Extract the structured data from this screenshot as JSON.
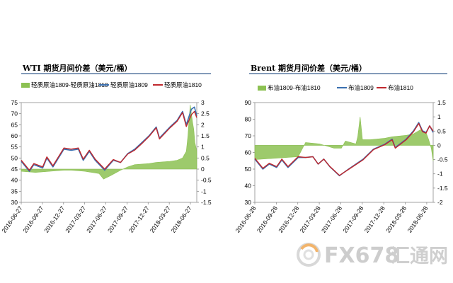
{
  "chart_data": [
    {
      "type": "line",
      "title": "WTI 期货月间价差（美元/桶）",
      "x_tick_labels": [
        "2016-06-27",
        "2016-09-27",
        "2016-12-27",
        "2017-03-27",
        "2017-06-27",
        "2017-09-27",
        "2017-12-27",
        "2018-03-27",
        "2018-06-27"
      ],
      "x_range": [
        "2016-06-27",
        "2018-07-20"
      ],
      "ylim_left": [
        30,
        75
      ],
      "yticks_left": [
        30,
        35,
        40,
        45,
        50,
        55,
        60,
        65,
        70,
        75
      ],
      "ylim_right": [
        -1.5,
        3
      ],
      "yticks_right": [
        -1.5,
        -1,
        -0.5,
        0,
        0.5,
        1,
        1.5,
        2,
        2.5,
        3
      ],
      "legend_position": "top",
      "grid": false,
      "series": [
        {
          "name": "轻质原油1809-轻质原油1810",
          "kind": "area",
          "axis": "right",
          "color": "#8cc152",
          "points": [
            [
              "2016-06-27",
              -0.1
            ],
            [
              "2016-08-27",
              -0.15
            ],
            [
              "2016-10-27",
              -0.1
            ],
            [
              "2016-12-27",
              -0.05
            ],
            [
              "2017-01-27",
              -0.05
            ],
            [
              "2017-03-27",
              -0.1
            ],
            [
              "2017-05-27",
              -0.2
            ],
            [
              "2017-06-15",
              -0.45
            ],
            [
              "2017-07-15",
              -0.3
            ],
            [
              "2017-08-27",
              -0.05
            ],
            [
              "2017-09-27",
              0.1
            ],
            [
              "2017-10-27",
              0.2
            ],
            [
              "2017-12-27",
              0.25
            ],
            [
              "2018-01-27",
              0.3
            ],
            [
              "2018-03-27",
              0.35
            ],
            [
              "2018-04-27",
              0.4
            ],
            [
              "2018-05-20",
              0.5
            ],
            [
              "2018-06-05",
              0.8
            ],
            [
              "2018-06-12",
              1.5
            ],
            [
              "2018-06-18",
              2.4
            ],
            [
              "2018-06-22",
              2.9
            ],
            [
              "2018-06-27",
              2.5
            ],
            [
              "2018-07-02",
              2.1
            ],
            [
              "2018-07-07",
              1.8
            ],
            [
              "2018-07-12",
              1.2
            ],
            [
              "2018-07-20",
              0.8
            ]
          ]
        },
        {
          "name": "轻质原油1809",
          "kind": "line",
          "axis": "left",
          "color": "#3a6fb0",
          "points": [
            [
              "2016-06-27",
              48.5
            ],
            [
              "2016-08-01",
              44
            ],
            [
              "2016-08-20",
              47
            ],
            [
              "2016-09-27",
              45.5
            ],
            [
              "2016-10-15",
              50
            ],
            [
              "2016-11-10",
              46
            ],
            [
              "2016-12-27",
              54
            ],
            [
              "2017-01-27",
              53.5
            ],
            [
              "2017-02-27",
              54
            ],
            [
              "2017-03-20",
              49
            ],
            [
              "2017-04-15",
              53
            ],
            [
              "2017-05-10",
              49
            ],
            [
              "2017-06-20",
              44.5
            ],
            [
              "2017-07-27",
              49
            ],
            [
              "2017-08-27",
              48
            ],
            [
              "2017-09-27",
              52
            ],
            [
              "2017-10-27",
              54
            ],
            [
              "2017-11-27",
              57
            ],
            [
              "2017-12-27",
              60
            ],
            [
              "2018-01-27",
              64
            ],
            [
              "2018-02-10",
              59
            ],
            [
              "2018-03-27",
              64
            ],
            [
              "2018-04-27",
              67
            ],
            [
              "2018-05-20",
              71
            ],
            [
              "2018-06-05",
              65
            ],
            [
              "2018-06-27",
              72
            ],
            [
              "2018-07-10",
              73
            ],
            [
              "2018-07-20",
              69
            ]
          ]
        },
        {
          "name": "轻质原油1810",
          "kind": "line",
          "axis": "left",
          "color": "#c0282d",
          "points": [
            [
              "2016-06-27",
              49
            ],
            [
              "2016-08-01",
              44.5
            ],
            [
              "2016-08-20",
              47.5
            ],
            [
              "2016-09-27",
              46
            ],
            [
              "2016-10-15",
              50.5
            ],
            [
              "2016-11-10",
              46.5
            ],
            [
              "2016-12-27",
              54.5
            ],
            [
              "2017-01-27",
              54
            ],
            [
              "2017-02-27",
              54.5
            ],
            [
              "2017-03-20",
              49.5
            ],
            [
              "2017-04-15",
              53.5
            ],
            [
              "2017-05-10",
              49.5
            ],
            [
              "2017-06-20",
              45
            ],
            [
              "2017-07-27",
              49.3
            ],
            [
              "2017-08-27",
              48
            ],
            [
              "2017-09-27",
              51.8
            ],
            [
              "2017-10-27",
              53.6
            ],
            [
              "2017-11-27",
              56.6
            ],
            [
              "2017-12-27",
              59.7
            ],
            [
              "2018-01-27",
              63.6
            ],
            [
              "2018-02-10",
              58.6
            ],
            [
              "2018-03-27",
              63.6
            ],
            [
              "2018-04-27",
              66.6
            ],
            [
              "2018-05-20",
              70.5
            ],
            [
              "2018-06-05",
              64.2
            ],
            [
              "2018-06-27",
              69.5
            ],
            [
              "2018-07-10",
              71
            ],
            [
              "2018-07-20",
              68.2
            ]
          ]
        }
      ]
    },
    {
      "type": "line",
      "title": "Brent 期货月间价差（美元/桶）",
      "x_tick_labels": [
        "2016-06-28",
        "2016-09-28",
        "2016-12-28",
        "2017-03-28",
        "2017-06-28",
        "2017-09-28",
        "2017-12-28",
        "2018-03-28",
        "2018-06-28"
      ],
      "x_range": [
        "2016-06-28",
        "2018-07-20"
      ],
      "ylim_left": [
        30,
        90
      ],
      "yticks_left": [
        30,
        40,
        50,
        60,
        70,
        80,
        90
      ],
      "ylim_right": [
        -2,
        1.5
      ],
      "yticks_right": [
        -2,
        -1.5,
        -1,
        -0.5,
        0,
        0.5,
        1,
        1.5
      ],
      "legend_position": "top",
      "grid": false,
      "series": [
        {
          "name": "布油1809-布油1810",
          "kind": "area",
          "axis": "right",
          "color": "#8cc152",
          "points": [
            [
              "2016-06-28",
              -0.5
            ],
            [
              "2016-12-28",
              -0.4
            ],
            [
              "2017-01-28",
              0.1
            ],
            [
              "2017-03-28",
              0.05
            ],
            [
              "2017-05-28",
              -0.1
            ],
            [
              "2017-06-28",
              -0.1
            ],
            [
              "2017-07-15",
              0.15
            ],
            [
              "2017-08-28",
              0.05
            ],
            [
              "2017-09-05",
              0.3
            ],
            [
              "2017-09-15",
              1.0
            ],
            [
              "2017-09-25",
              0.2
            ],
            [
              "2017-10-28",
              0.2
            ],
            [
              "2017-12-28",
              0.25
            ],
            [
              "2018-01-28",
              0.3
            ],
            [
              "2018-03-28",
              0.35
            ],
            [
              "2018-04-28",
              0.4
            ],
            [
              "2018-05-28",
              0.55
            ],
            [
              "2018-06-20",
              0.45
            ],
            [
              "2018-07-01",
              0.2
            ],
            [
              "2018-07-12",
              -0.1
            ],
            [
              "2018-07-20",
              -0.55
            ]
          ]
        },
        {
          "name": "布油1809",
          "kind": "line",
          "axis": "left",
          "color": "#3a6fb0",
          "points": [
            [
              "2016-06-28",
              56
            ],
            [
              "2016-08-01",
              50
            ],
            [
              "2016-08-28",
              53
            ],
            [
              "2016-09-28",
              51
            ],
            [
              "2016-10-20",
              55.5
            ],
            [
              "2016-11-15",
              51
            ],
            [
              "2016-12-28",
              57
            ],
            [
              "2017-01-28",
              57
            ],
            [
              "2017-02-28",
              57.5
            ],
            [
              "2017-03-22",
              53
            ],
            [
              "2017-04-15",
              56
            ],
            [
              "2017-05-10",
              51.5
            ],
            [
              "2017-06-20",
              46
            ],
            [
              "2017-07-28",
              50
            ],
            [
              "2017-09-28",
              56
            ],
            [
              "2017-11-10",
              62
            ],
            [
              "2017-12-28",
              65
            ],
            [
              "2018-01-28",
              68
            ],
            [
              "2018-02-10",
              63
            ],
            [
              "2018-03-28",
              68
            ],
            [
              "2018-04-28",
              73
            ],
            [
              "2018-05-20",
              78
            ],
            [
              "2018-06-05",
              73
            ],
            [
              "2018-06-20",
              72
            ],
            [
              "2018-07-05",
              76
            ],
            [
              "2018-07-20",
              72
            ]
          ]
        },
        {
          "name": "布油1810",
          "kind": "line",
          "axis": "left",
          "color": "#c0282d",
          "points": [
            [
              "2016-06-28",
              56.5
            ],
            [
              "2016-08-01",
              50.5
            ],
            [
              "2016-08-28",
              53.5
            ],
            [
              "2016-09-28",
              51.5
            ],
            [
              "2016-10-20",
              56
            ],
            [
              "2016-11-15",
              51.5
            ],
            [
              "2016-12-28",
              57.5
            ],
            [
              "2017-01-28",
              57
            ],
            [
              "2017-02-28",
              57.4
            ],
            [
              "2017-03-22",
              53
            ],
            [
              "2017-04-15",
              56
            ],
            [
              "2017-05-10",
              51.6
            ],
            [
              "2017-06-20",
              46.2
            ],
            [
              "2017-07-28",
              49.8
            ],
            [
              "2017-09-28",
              55.6
            ],
            [
              "2017-11-10",
              61.7
            ],
            [
              "2017-12-28",
              64.7
            ],
            [
              "2018-01-28",
              67.6
            ],
            [
              "2018-02-10",
              62.6
            ],
            [
              "2018-03-28",
              67.6
            ],
            [
              "2018-04-28",
              72.5
            ],
            [
              "2018-05-20",
              77.4
            ],
            [
              "2018-06-05",
              72.5
            ],
            [
              "2018-06-20",
              71.6
            ],
            [
              "2018-07-05",
              76
            ],
            [
              "2018-07-20",
              72.8
            ]
          ]
        }
      ]
    }
  ],
  "watermark": {
    "logo_icon": "fx678-swirl-icon",
    "text_latin": "FX678",
    "text_cn": "汇通网",
    "color": "#c9c9c9",
    "accent_color": "#f2b46b"
  }
}
